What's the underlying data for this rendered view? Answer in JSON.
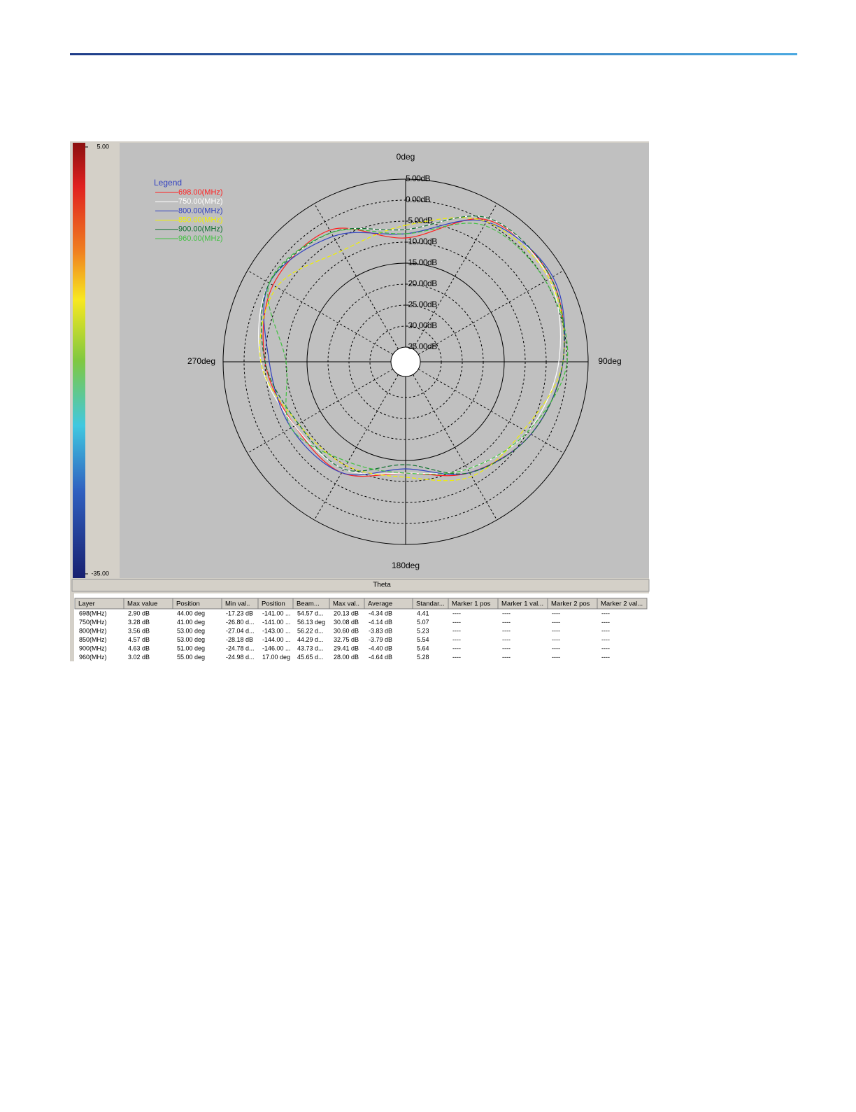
{
  "chart_data": {
    "type": "polar",
    "angle_ticks": [
      {
        "value": 0,
        "label": "0deg"
      },
      {
        "value": 90,
        "label": "90deg"
      },
      {
        "value": 180,
        "label": "180deg"
      },
      {
        "value": 270,
        "label": "270deg"
      }
    ],
    "rlim": [
      -35,
      5
    ],
    "rticks": [
      {
        "value": 5,
        "label": "5.00dB"
      },
      {
        "value": 0,
        "label": "0.00dB"
      },
      {
        "value": -5,
        "label": "-5.00dB"
      },
      {
        "value": -10,
        "label": "-10.00dB"
      },
      {
        "value": -15,
        "label": "-15.00dB"
      },
      {
        "value": -20,
        "label": "-20.00dB"
      },
      {
        "value": -25,
        "label": "-25.00dB"
      },
      {
        "value": -30,
        "label": "-30.00dB"
      },
      {
        "value": -35,
        "label": "-35.00dB"
      }
    ],
    "legend_title": "Legend",
    "theta": [
      0,
      30,
      60,
      90,
      120,
      150,
      180,
      210,
      240,
      270,
      300,
      330
    ],
    "series": [
      {
        "name": "698.00(MHz)",
        "color": "#ff2020",
        "values": [
          -9,
          0.5,
          1.5,
          -1,
          -4,
          -8,
          -12,
          -8,
          -8,
          -5,
          -2,
          -2.3
        ]
      },
      {
        "name": "750.00(MHz)",
        "color": "#ffffff",
        "values": [
          -7,
          1,
          1,
          -2,
          -5,
          -9,
          -12,
          -9,
          -8,
          -4,
          -1,
          -3
        ]
      },
      {
        "name": "800.00(MHz)",
        "color": "#3040c0",
        "values": [
          -8,
          0,
          2,
          -1,
          -4,
          -8,
          -13,
          -8,
          -7,
          -6,
          -1,
          -4
        ]
      },
      {
        "name": "850.00(MHz)",
        "color": "#f0f000",
        "values": [
          -6,
          0,
          1,
          -1,
          -6,
          -7,
          -11,
          -10,
          -9,
          -4,
          -3,
          -8
        ]
      },
      {
        "name": "900.00(MHz)",
        "color": "#107030",
        "values": [
          -7,
          1,
          1.5,
          -1,
          -4,
          -8,
          -14,
          -9,
          -9,
          -5,
          -1,
          -3
        ]
      },
      {
        "name": "960.00(MHz)",
        "color": "#40c040",
        "values": [
          -8,
          -1,
          0,
          0,
          -5,
          -9,
          -12,
          -11,
          -7,
          -10,
          -1,
          -3
        ]
      }
    ],
    "axis_title": "Theta"
  },
  "colorbar": {
    "unit": "dB",
    "ticks": [
      {
        "value": 5,
        "label": "5.00"
      },
      {
        "value": -35,
        "label": "-35.00"
      }
    ]
  },
  "table": {
    "header": [
      "Layer",
      "Max value",
      "Position",
      "Min val..",
      "Position",
      "Beam...",
      "Max val..",
      "Average",
      "Standar...",
      "Marker 1 pos",
      "Marker 1 val...",
      "Marker 2 pos",
      "Marker 2 val..."
    ],
    "rows": [
      [
        "698(MHz)",
        "2.90 dB",
        "44.00 deg",
        "-17.23 dB",
        "-141.00 ...",
        "54.57 d...",
        "20.13 dB",
        "-4.34 dB",
        "4.41",
        "----",
        "----",
        "----",
        "----"
      ],
      [
        "750(MHz)",
        "3.28 dB",
        "41.00 deg",
        "-26.80 d...",
        "-141.00 ...",
        "56.13 deg",
        "30.08 dB",
        "-4.14 dB",
        "5.07",
        "----",
        "----",
        "----",
        "----"
      ],
      [
        "800(MHz)",
        "3.56 dB",
        "53.00 deg",
        "-27.04 d...",
        "-143.00 ...",
        "56.22 d...",
        "30.60 dB",
        "-3.83 dB",
        "5.23",
        "----",
        "----",
        "----",
        "----"
      ],
      [
        "850(MHz)",
        "4.57 dB",
        "53.00 deg",
        "-28.18 dB",
        "-144.00 ...",
        "44.29 d...",
        "32.75 dB",
        "-3.79 dB",
        "5.54",
        "----",
        "----",
        "----",
        "----"
      ],
      [
        "900(MHz)",
        "4.63 dB",
        "51.00 deg",
        "-24.78 d...",
        "-146.00 ...",
        "43.73 d...",
        "29.41 dB",
        "-4.40 dB",
        "5.64",
        "----",
        "----",
        "----",
        "----"
      ],
      [
        "960(MHz)",
        "3.02 dB",
        "55.00 deg",
        "-24.98 d...",
        "17.00 deg",
        "45.65 d...",
        "28.00 dB",
        "-4.64 dB",
        "5.28",
        "----",
        "----",
        "----",
        "----"
      ]
    ]
  }
}
